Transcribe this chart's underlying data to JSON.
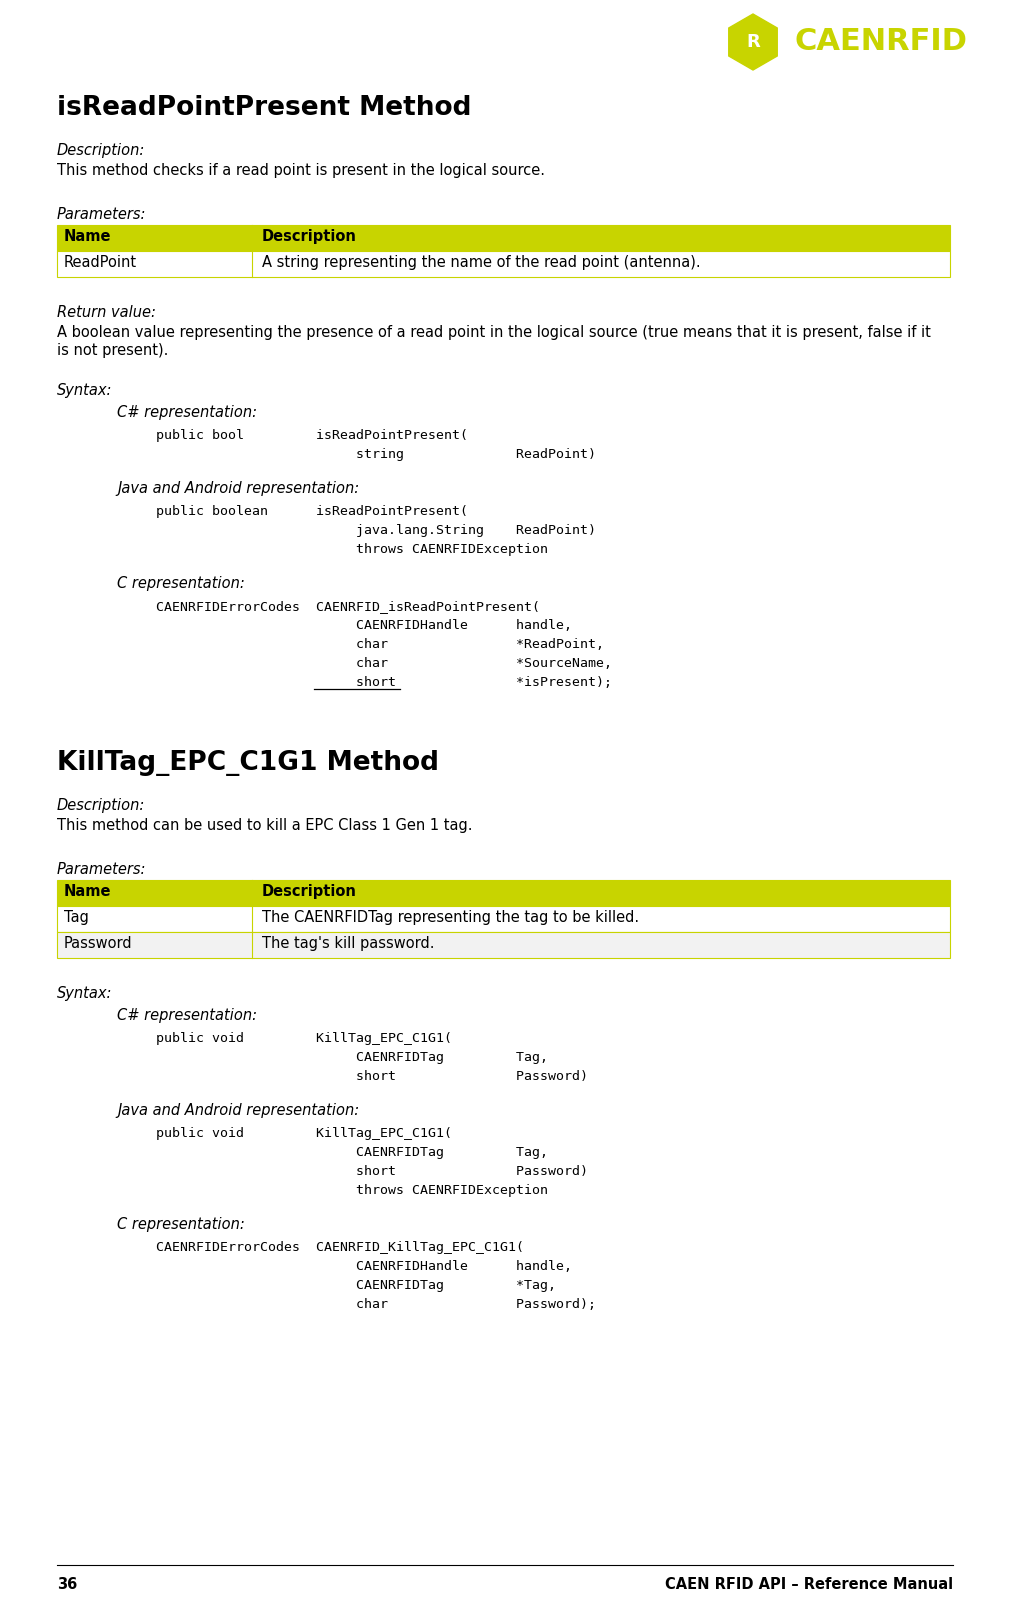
{
  "bg_color": "#ffffff",
  "logo_color": "#c8d400",
  "header_bg": "#c8d400",
  "header_text_color": "#000000",
  "row_bg": "#ffffff",
  "row_alt_bg": "#f2f2f2",
  "border_color": "#c8d400",
  "page_number": "36",
  "footer_text": "CAEN RFID API – Reference Manual",
  "section1_title": "isReadPointPresent Method",
  "section1_desc_label": "Description:",
  "section1_desc": "This method checks if a read point is present in the logical source.",
  "section1_params_label": "Parameters:",
  "section1_table_headers": [
    "Name",
    "Description"
  ],
  "section1_table_rows": [
    [
      "ReadPoint",
      "A string representing the name of the read point (antenna)."
    ]
  ],
  "section1_return_label": "Return value:",
  "section1_return_line1": "A boolean value representing the presence of a read point in the logical source (true means that it is present, false if it",
  "section1_return_line2": "is not present).",
  "section1_syntax_label": "Syntax:",
  "section1_cs_label": "C# representation:",
  "section1_cs_lines": [
    "   public bool         isReadPointPresent(",
    "                            string              ReadPoint)"
  ],
  "section1_java_label": "Java and Android representation:",
  "section1_java_lines": [
    "   public boolean      isReadPointPresent(",
    "                            java.lang.String    ReadPoint)",
    "                            throws CAENRFIDException"
  ],
  "section1_c_label": "C representation:",
  "section1_c_lines": [
    "   CAENRFIDErrorCodes  CAENRFID_isReadPointPresent(",
    "                            CAENRFIDHandle      handle,",
    "                            char                *ReadPoint,",
    "                            char                *SourceName,",
    "                            short               *isPresent);"
  ],
  "section1_c_underline_line": 4,
  "section1_c_underline_start": "*isPresent",
  "section2_title": "KillTag_EPC_C1G1 Method",
  "section2_desc_label": "Description:",
  "section2_desc": "This method can be used to kill a EPC Class 1 Gen 1 tag.",
  "section2_params_label": "Parameters:",
  "section2_table_headers": [
    "Name",
    "Description"
  ],
  "section2_table_rows": [
    [
      "Tag",
      "The CAENRFIDTag representing the tag to be killed."
    ],
    [
      "Password",
      "The tag's kill password."
    ]
  ],
  "section2_syntax_label": "Syntax:",
  "section2_cs_label": "C# representation:",
  "section2_cs_lines": [
    "   public void         KillTag_EPC_C1G1(",
    "                            CAENRFIDTag         Tag,",
    "                            short               Password)"
  ],
  "section2_java_label": "Java and Android representation:",
  "section2_java_lines": [
    "   public void         KillTag_EPC_C1G1(",
    "                            CAENRFIDTag         Tag,",
    "                            short               Password)",
    "                            throws CAENRFIDException"
  ],
  "section2_c_label": "C representation:",
  "section2_c_lines": [
    "   CAENRFIDErrorCodes  CAENRFID_KillTag_EPC_C1G1(",
    "                            CAENRFIDHandle      handle,",
    "                            CAENRFIDTag         *Tag,",
    "                            char                Password);"
  ]
}
